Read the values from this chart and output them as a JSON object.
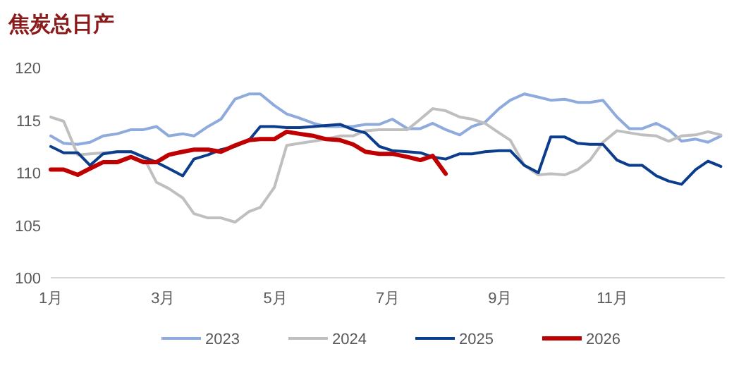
{
  "chart_data": {
    "type": "line",
    "title": "焦炭总日产",
    "xlim": [
      1,
      13
    ],
    "xticks": [
      {
        "value": 1,
        "label": "1月"
      },
      {
        "value": 3,
        "label": "3月"
      },
      {
        "value": 5,
        "label": "5月"
      },
      {
        "value": 7,
        "label": "7月"
      },
      {
        "value": 9,
        "label": "9月"
      },
      {
        "value": 11,
        "label": "11月"
      }
    ],
    "ylim": [
      100,
      120
    ],
    "yticks": [
      100,
      105,
      110,
      115,
      120
    ],
    "grid": false,
    "legend": "bottom",
    "marker": "none",
    "line_style": "solid",
    "series": [
      {
        "name": "2023",
        "color": "#8faadc",
        "x": [
          1.0,
          1.23,
          1.48,
          1.7,
          1.93,
          2.18,
          2.43,
          2.65,
          2.88,
          3.1,
          3.35,
          3.55,
          3.8,
          4.03,
          4.28,
          4.53,
          4.73,
          4.98,
          5.2,
          5.43,
          5.68,
          5.9,
          6.15,
          6.38,
          6.6,
          6.85,
          7.08,
          7.35,
          7.58,
          7.8,
          8.03,
          8.28,
          8.5,
          8.73,
          8.98,
          9.18,
          9.43,
          9.68,
          9.9,
          10.15,
          10.38,
          10.6,
          10.83,
          11.08,
          11.3,
          11.53,
          11.78,
          12.0,
          12.23,
          12.48,
          12.7,
          12.93
        ],
        "values": [
          113.5,
          112.8,
          112.7,
          112.9,
          113.5,
          113.7,
          114.1,
          114.1,
          114.4,
          113.5,
          113.7,
          113.5,
          114.4,
          115.1,
          117.0,
          117.5,
          117.5,
          116.4,
          115.6,
          115.2,
          114.7,
          114.4,
          114.4,
          114.4,
          114.6,
          114.6,
          115.1,
          114.2,
          114.2,
          114.7,
          114.1,
          113.6,
          114.4,
          114.8,
          116.1,
          116.9,
          117.5,
          117.2,
          116.9,
          117.0,
          116.7,
          116.7,
          116.9,
          115.3,
          114.2,
          114.2,
          114.7,
          114.1,
          113.0,
          113.2,
          112.9,
          113.5
        ]
      },
      {
        "name": "2024",
        "color": "#bfbfbf",
        "x": [
          1.0,
          1.23,
          1.48,
          1.7,
          1.93,
          2.18,
          2.43,
          2.65,
          2.88,
          3.1,
          3.35,
          3.55,
          3.8,
          4.03,
          4.28,
          4.53,
          4.73,
          4.98,
          5.2,
          5.43,
          5.68,
          5.9,
          6.15,
          6.38,
          6.6,
          6.85,
          7.08,
          7.35,
          7.58,
          7.8,
          8.03,
          8.28,
          8.5,
          8.73,
          8.98,
          9.18,
          9.43,
          9.68,
          9.9,
          10.15,
          10.38,
          10.6,
          10.83,
          11.08,
          11.3,
          11.53,
          11.78,
          12.0,
          12.23,
          12.48,
          12.7,
          12.93
        ],
        "values": [
          115.3,
          114.9,
          111.7,
          111.8,
          111.9,
          112.0,
          112.0,
          111.5,
          109.1,
          108.5,
          107.6,
          106.1,
          105.7,
          105.7,
          105.3,
          106.3,
          106.7,
          108.6,
          112.6,
          112.8,
          113.0,
          113.2,
          113.5,
          113.5,
          114.0,
          114.1,
          114.1,
          114.1,
          115.1,
          116.1,
          115.9,
          115.3,
          115.1,
          114.7,
          113.8,
          113.1,
          110.7,
          109.8,
          109.9,
          109.8,
          110.3,
          111.2,
          112.9,
          114.0,
          113.8,
          113.6,
          113.5,
          113.0,
          113.5,
          113.6,
          113.9,
          113.6
        ]
      },
      {
        "name": "2025",
        "color": "#0b3d8c",
        "x": [
          1.0,
          1.23,
          1.48,
          1.7,
          1.93,
          2.18,
          2.43,
          2.65,
          2.88,
          3.1,
          3.35,
          3.55,
          3.8,
          4.03,
          4.28,
          4.53,
          4.73,
          4.98,
          5.2,
          5.43,
          5.68,
          5.9,
          6.15,
          6.38,
          6.6,
          6.85,
          7.08,
          7.35,
          7.58,
          7.8,
          8.03,
          8.28,
          8.5,
          8.73,
          8.98,
          9.18,
          9.43,
          9.68,
          9.9,
          10.15,
          10.38,
          10.6,
          10.83,
          11.08,
          11.3,
          11.53,
          11.78,
          12.0,
          12.23,
          12.48,
          12.7,
          12.93
        ],
        "values": [
          112.5,
          111.9,
          111.9,
          110.7,
          111.8,
          112.0,
          112.0,
          111.5,
          111.0,
          110.4,
          109.7,
          111.3,
          111.7,
          112.2,
          112.5,
          113.1,
          114.4,
          114.4,
          114.3,
          114.3,
          114.4,
          114.5,
          114.6,
          114.1,
          113.8,
          112.5,
          112.1,
          112.0,
          111.9,
          111.5,
          111.3,
          111.8,
          111.8,
          112.0,
          112.1,
          112.1,
          110.7,
          110.0,
          113.4,
          113.4,
          112.8,
          112.7,
          112.7,
          111.2,
          110.7,
          110.7,
          109.7,
          109.2,
          108.9,
          110.3,
          111.1,
          110.6
        ]
      },
      {
        "name": "2026",
        "color": "#c00000",
        "x": [
          1.0,
          1.23,
          1.48,
          1.7,
          1.93,
          2.18,
          2.43,
          2.65,
          2.88,
          3.1,
          3.35,
          3.55,
          3.8,
          4.03,
          4.28,
          4.53,
          4.73,
          4.98,
          5.2,
          5.43,
          5.68,
          5.9,
          6.15,
          6.38,
          6.6,
          6.85,
          7.08,
          7.35,
          7.58,
          7.8,
          8.03
        ],
        "values": [
          110.3,
          110.3,
          109.8,
          110.4,
          111.0,
          111.0,
          111.5,
          111.0,
          111.0,
          111.7,
          112.0,
          112.2,
          112.2,
          112.0,
          112.6,
          113.1,
          113.2,
          113.2,
          113.9,
          113.7,
          113.5,
          113.2,
          113.1,
          112.7,
          112.0,
          111.8,
          111.8,
          111.5,
          111.2,
          111.6,
          109.9
        ]
      }
    ]
  }
}
